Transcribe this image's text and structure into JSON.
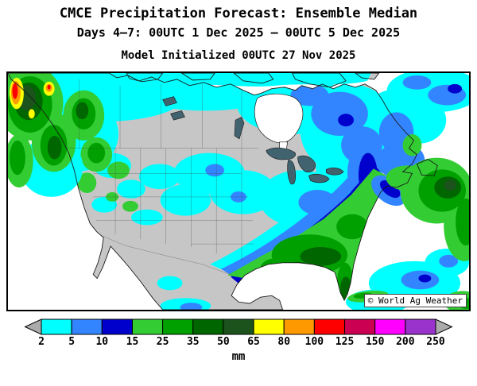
{
  "header": {
    "title": "CMCE Precipitation Forecast: Ensemble Median",
    "date_range": "Days 4–7: 00UTC 1 Dec 2025 — 00UTC 5 Dec 2025",
    "model_initialized": "Model Initialized 00UTC 27 Nov 2025"
  },
  "map": {
    "watermark": "© World Ag Weather",
    "region": "North America",
    "land_color": "#c6c6c6",
    "ocean_color": "#ffffff"
  },
  "chart_data": {
    "type": "heatmap",
    "map_type": "filled_contour_precipitation_map",
    "region": "North America",
    "title": "CMCE Precipitation Forecast: Ensemble Median",
    "valid_period": "Days 4–7: 00UTC 1 Dec 2025 — 00UTC 5 Dec 2025",
    "initialization": "Model Initialized 00UTC 27 Nov 2025",
    "unit": "mm",
    "legend_position": "bottom",
    "scale": {
      "tick_labels": [
        "2",
        "5",
        "10",
        "15",
        "25",
        "35",
        "50",
        "65",
        "80",
        "100",
        "125",
        "150",
        "200",
        "250"
      ],
      "bin_edges_mm": [
        2,
        5,
        10,
        15,
        25,
        35,
        50,
        65,
        80,
        100,
        125,
        150,
        200,
        250
      ],
      "below_min_color": "#ababab",
      "above_max_color": "#ababab",
      "segment_colors": [
        "#00ffff",
        "#3385ff",
        "#0000cd",
        "#33cc33",
        "#00a000",
        "#006600",
        "#1c521c",
        "#ffff00",
        "#ff9900",
        "#ff0000",
        "#cc0052",
        "#ff00ff",
        "#9933cc"
      ]
    },
    "observed_regions": [
      {
        "area": "British Columbia / SE Alaska coast",
        "precip_mm": "35-125, local maxima >100"
      },
      {
        "area": "Pacific Northwest and northern Rockies",
        "precip_mm": "15-50"
      },
      {
        "area": "Northern and central Canada",
        "precip_mm": "2-10"
      },
      {
        "area": "Great Plains and interior Southwest",
        "precip_mm": "<2"
      },
      {
        "area": "Midwest / Mississippi Valley",
        "precip_mm": "2-5"
      },
      {
        "area": "US Southeast, Gulf Coast and Florida",
        "precip_mm": "15-50"
      },
      {
        "area": "Appalachians to Northeast corridor band",
        "precip_mm": "5-15"
      },
      {
        "area": "Quebec / New England",
        "precip_mm": "5-15"
      },
      {
        "area": "Atlantic Canada / Newfoundland",
        "precip_mm": "15-65"
      },
      {
        "area": "Mexico",
        "precip_mm": "<2"
      },
      {
        "area": "Cuba and Caribbean",
        "precip_mm": "2-25"
      }
    ]
  }
}
